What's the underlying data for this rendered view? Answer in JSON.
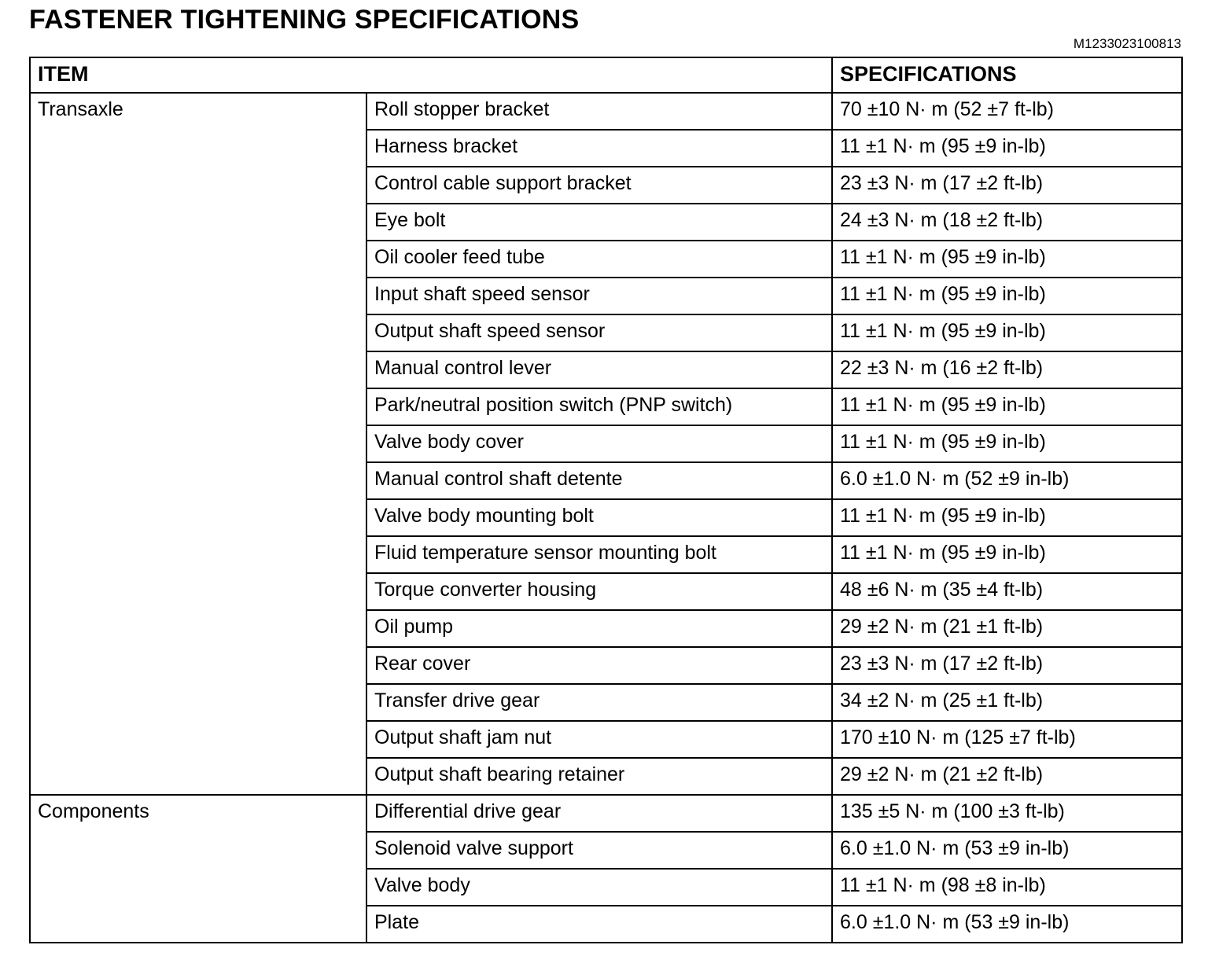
{
  "page": {
    "title": "FASTENER TIGHTENING SPECIFICATIONS",
    "doc_id": "M1233023100813"
  },
  "table": {
    "headers": {
      "item": "ITEM",
      "specifications": "SPECIFICATIONS"
    },
    "groups": [
      {
        "name": "Transaxle",
        "rows": [
          {
            "item": "Roll stopper bracket",
            "spec": "70 ±10 N· m (52 ±7 ft-lb)"
          },
          {
            "item": "Harness bracket",
            "spec": "11 ±1 N· m (95 ±9 in-lb)"
          },
          {
            "item": "Control cable support bracket",
            "spec": "23 ±3 N· m (17 ±2 ft-lb)"
          },
          {
            "item": "Eye bolt",
            "spec": "24 ±3 N· m (18 ±2 ft-lb)"
          },
          {
            "item": "Oil cooler feed tube",
            "spec": "11 ±1 N· m (95 ±9 in-lb)"
          },
          {
            "item": "Input shaft speed sensor",
            "spec": "11 ±1 N· m (95 ±9 in-lb)"
          },
          {
            "item": "Output shaft speed sensor",
            "spec": "11 ±1 N· m (95 ±9 in-lb)"
          },
          {
            "item": "Manual control lever",
            "spec": "22 ±3 N· m (16 ±2 ft-lb)"
          },
          {
            "item": "Park/neutral position switch (PNP switch)",
            "spec": "11 ±1 N· m (95 ±9 in-lb)"
          },
          {
            "item": "Valve body cover",
            "spec": "11 ±1 N· m (95 ±9 in-lb)"
          },
          {
            "item": "Manual control shaft detente",
            "spec": "6.0 ±1.0 N· m (52 ±9 in-lb)"
          },
          {
            "item": "Valve body mounting bolt",
            "spec": "11 ±1 N· m (95 ±9 in-lb)"
          },
          {
            "item": "Fluid temperature sensor mounting bolt",
            "spec": "11 ±1 N· m (95 ±9 in-lb)"
          },
          {
            "item": "Torque converter housing",
            "spec": "48 ±6 N· m (35 ±4 ft-lb)"
          },
          {
            "item": "Oil pump",
            "spec": "29 ±2 N· m (21 ±1 ft-lb)"
          },
          {
            "item": "Rear cover",
            "spec": "23 ±3 N· m (17 ±2 ft-lb)"
          },
          {
            "item": "Transfer drive gear",
            "spec": "34 ±2 N· m (25 ±1 ft-lb)"
          },
          {
            "item": "Output shaft jam nut",
            "spec": "170 ±10 N· m (125 ±7 ft-lb)"
          },
          {
            "item": "Output shaft bearing retainer",
            "spec": "29 ±2 N· m (21 ±2 ft-lb)"
          }
        ]
      },
      {
        "name": "Components",
        "rows": [
          {
            "item": "Differential drive gear",
            "spec": "135 ±5 N· m (100 ±3 ft-lb)"
          },
          {
            "item": "Solenoid valve support",
            "spec": "6.0 ±1.0 N· m (53 ±9 in-lb)"
          },
          {
            "item": "Valve body",
            "spec": "11 ±1 N· m (98 ±8 in-lb)"
          },
          {
            "item": "Plate",
            "spec": "6.0 ±1.0 N· m (53 ±9 in-lb)"
          }
        ]
      }
    ]
  }
}
